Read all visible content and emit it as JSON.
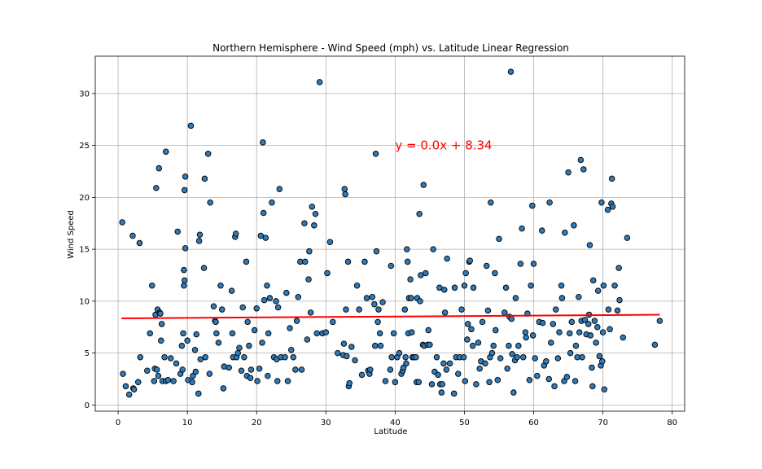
{
  "colors": {
    "marker_fill": "#2f7ab8",
    "marker_edge": "#000000",
    "regression": "#ff0000",
    "annotation": "#ff0000",
    "grid": "#b0b0b0"
  },
  "chart_data": {
    "type": "scatter",
    "title": "Northern Hemisphere - Wind Speed (mph) vs. Latitude Linear Regression",
    "xlabel": "Latitude",
    "ylabel": "Wind Speed",
    "xlim": [
      -3.3,
      81.8
    ],
    "ylim": [
      -0.6,
      33.6
    ],
    "xticks": [
      0,
      10,
      20,
      30,
      40,
      50,
      60,
      70,
      80
    ],
    "yticks": [
      0,
      5,
      10,
      15,
      20,
      25,
      30
    ],
    "grid": true,
    "annotation": {
      "text": "y = 0.0x + 8.34",
      "x": 40.0,
      "y": 25.0
    },
    "regression": {
      "slope": 0.0045,
      "intercept": 8.34,
      "x_start": 0.5,
      "x_end": 78.2
    },
    "points": [
      [
        0.6,
        17.6
      ],
      [
        0.7,
        3.0
      ],
      [
        1.1,
        1.8
      ],
      [
        1.6,
        1.0
      ],
      [
        2.1,
        16.3
      ],
      [
        2.2,
        1.6
      ],
      [
        2.3,
        1.5
      ],
      [
        2.9,
        2.2
      ],
      [
        3.1,
        15.6
      ],
      [
        3.2,
        4.6
      ],
      [
        4.2,
        3.3
      ],
      [
        4.6,
        6.9
      ],
      [
        4.9,
        11.5
      ],
      [
        5.2,
        2.3
      ],
      [
        5.3,
        3.5
      ],
      [
        5.4,
        8.7
      ],
      [
        5.5,
        20.9
      ],
      [
        5.6,
        3.4
      ],
      [
        5.7,
        9.2
      ],
      [
        5.8,
        2.8
      ],
      [
        5.9,
        22.8
      ],
      [
        6.0,
        8.9
      ],
      [
        6.1,
        8.8
      ],
      [
        6.2,
        6.2
      ],
      [
        6.3,
        7.8
      ],
      [
        6.4,
        2.3
      ],
      [
        6.7,
        4.6
      ],
      [
        6.9,
        24.4
      ],
      [
        6.9,
        2.3
      ],
      [
        7.2,
        2.4
      ],
      [
        7.6,
        4.5
      ],
      [
        8.0,
        2.3
      ],
      [
        8.4,
        4.0
      ],
      [
        8.6,
        16.7
      ],
      [
        9.0,
        3.0
      ],
      [
        9.2,
        5.7
      ],
      [
        9.3,
        3.4
      ],
      [
        9.4,
        6.9
      ],
      [
        9.5,
        13.0
      ],
      [
        9.5,
        11.5
      ],
      [
        9.6,
        20.7
      ],
      [
        9.6,
        12.0
      ],
      [
        9.7,
        22.0
      ],
      [
        9.7,
        15.1
      ],
      [
        10.0,
        6.2
      ],
      [
        10.1,
        2.4
      ],
      [
        10.5,
        26.9
      ],
      [
        10.7,
        2.2
      ],
      [
        10.8,
        2.8
      ],
      [
        11.1,
        5.3
      ],
      [
        11.2,
        3.2
      ],
      [
        11.3,
        6.8
      ],
      [
        11.6,
        1.1
      ],
      [
        11.7,
        15.8
      ],
      [
        11.8,
        16.4
      ],
      [
        11.9,
        4.4
      ],
      [
        12.4,
        13.2
      ],
      [
        12.5,
        21.8
      ],
      [
        12.6,
        4.6
      ],
      [
        13.0,
        24.2
      ],
      [
        13.2,
        3.0
      ],
      [
        13.3,
        19.5
      ],
      [
        13.8,
        9.5
      ],
      [
        14.0,
        8.1
      ],
      [
        14.1,
        8.0
      ],
      [
        14.2,
        6.9
      ],
      [
        14.5,
        6.0
      ],
      [
        14.8,
        11.5
      ],
      [
        15.0,
        9.2
      ],
      [
        15.2,
        1.6
      ],
      [
        15.3,
        3.7
      ],
      [
        16.0,
        3.6
      ],
      [
        16.4,
        11.0
      ],
      [
        16.5,
        6.9
      ],
      [
        16.6,
        4.6
      ],
      [
        16.9,
        16.2
      ],
      [
        17.0,
        16.5
      ],
      [
        17.1,
        4.6
      ],
      [
        17.3,
        5.0
      ],
      [
        17.5,
        5.5
      ],
      [
        17.8,
        3.3
      ],
      [
        18.0,
        9.4
      ],
      [
        18.2,
        4.6
      ],
      [
        18.5,
        13.8
      ],
      [
        18.6,
        2.8
      ],
      [
        18.7,
        8.0
      ],
      [
        18.9,
        5.7
      ],
      [
        19.1,
        2.6
      ],
      [
        19.2,
        3.4
      ],
      [
        19.7,
        7.2
      ],
      [
        20.0,
        9.3
      ],
      [
        20.1,
        2.3
      ],
      [
        20.4,
        3.5
      ],
      [
        20.6,
        16.3
      ],
      [
        20.8,
        6.0
      ],
      [
        20.9,
        25.3
      ],
      [
        21.0,
        18.5
      ],
      [
        21.1,
        10.1
      ],
      [
        21.3,
        16.1
      ],
      [
        21.5,
        11.5
      ],
      [
        21.6,
        2.8
      ],
      [
        21.7,
        6.9
      ],
      [
        21.9,
        10.3
      ],
      [
        22.2,
        19.5
      ],
      [
        22.5,
        4.6
      ],
      [
        22.8,
        10.0
      ],
      [
        22.9,
        4.4
      ],
      [
        23.0,
        2.3
      ],
      [
        23.1,
        9.4
      ],
      [
        23.3,
        20.8
      ],
      [
        23.5,
        4.6
      ],
      [
        24.1,
        4.6
      ],
      [
        24.3,
        10.8
      ],
      [
        24.5,
        2.3
      ],
      [
        24.8,
        7.4
      ],
      [
        25.0,
        5.3
      ],
      [
        25.3,
        4.6
      ],
      [
        25.6,
        3.4
      ],
      [
        25.8,
        8.1
      ],
      [
        26.0,
        10.4
      ],
      [
        26.3,
        13.8
      ],
      [
        26.5,
        3.4
      ],
      [
        26.9,
        17.5
      ],
      [
        27.0,
        13.8
      ],
      [
        27.3,
        6.3
      ],
      [
        27.5,
        12.1
      ],
      [
        27.6,
        14.8
      ],
      [
        27.8,
        8.9
      ],
      [
        28.0,
        19.1
      ],
      [
        28.3,
        17.3
      ],
      [
        28.5,
        18.4
      ],
      [
        28.7,
        6.9
      ],
      [
        29.1,
        31.1
      ],
      [
        29.5,
        6.9
      ],
      [
        30.0,
        7.0
      ],
      [
        30.2,
        12.7
      ],
      [
        30.6,
        15.7
      ],
      [
        31.0,
        8.0
      ],
      [
        31.7,
        5.0
      ],
      [
        32.5,
        4.8
      ],
      [
        32.6,
        5.9
      ],
      [
        32.7,
        20.8
      ],
      [
        32.8,
        20.3
      ],
      [
        32.9,
        9.2
      ],
      [
        33.0,
        4.7
      ],
      [
        33.2,
        13.8
      ],
      [
        33.3,
        1.8
      ],
      [
        33.4,
        2.1
      ],
      [
        33.7,
        5.6
      ],
      [
        34.2,
        4.3
      ],
      [
        34.5,
        11.5
      ],
      [
        34.8,
        9.2
      ],
      [
        35.2,
        2.9
      ],
      [
        35.6,
        13.8
      ],
      [
        35.9,
        10.3
      ],
      [
        36.1,
        3.3
      ],
      [
        36.3,
        3.0
      ],
      [
        36.4,
        3.4
      ],
      [
        36.7,
        10.4
      ],
      [
        37.0,
        9.7
      ],
      [
        37.1,
        5.7
      ],
      [
        37.2,
        24.2
      ],
      [
        37.3,
        14.8
      ],
      [
        37.5,
        8.0
      ],
      [
        37.6,
        9.2
      ],
      [
        37.8,
        6.9
      ],
      [
        37.9,
        5.7
      ],
      [
        38.2,
        9.9
      ],
      [
        38.6,
        2.3
      ],
      [
        39.3,
        3.4
      ],
      [
        39.4,
        13.4
      ],
      [
        39.5,
        4.6
      ],
      [
        39.8,
        6.9
      ],
      [
        40.0,
        2.2
      ],
      [
        40.3,
        4.6
      ],
      [
        40.6,
        5.0
      ],
      [
        40.9,
        3.0
      ],
      [
        41.1,
        3.3
      ],
      [
        41.2,
        3.6
      ],
      [
        41.4,
        9.2
      ],
      [
        41.5,
        4.6
      ],
      [
        41.6,
        4.0
      ],
      [
        41.7,
        15.0
      ],
      [
        41.8,
        13.8
      ],
      [
        41.9,
        6.9
      ],
      [
        42.0,
        10.3
      ],
      [
        42.2,
        12.1
      ],
      [
        42.3,
        10.3
      ],
      [
        42.4,
        7.0
      ],
      [
        42.5,
        4.6
      ],
      [
        42.7,
        4.6
      ],
      [
        43.0,
        4.6
      ],
      [
        43.1,
        2.2
      ],
      [
        43.2,
        10.3
      ],
      [
        43.4,
        2.2
      ],
      [
        43.5,
        18.4
      ],
      [
        43.6,
        10.0
      ],
      [
        43.7,
        12.5
      ],
      [
        44.0,
        5.8
      ],
      [
        44.1,
        21.2
      ],
      [
        44.2,
        5.7
      ],
      [
        44.4,
        12.7
      ],
      [
        44.7,
        5.8
      ],
      [
        44.8,
        7.2
      ],
      [
        45.0,
        5.8
      ],
      [
        45.3,
        2.0
      ],
      [
        45.5,
        15.0
      ],
      [
        45.7,
        3.2
      ],
      [
        46.0,
        4.6
      ],
      [
        46.2,
        2.9
      ],
      [
        46.4,
        11.3
      ],
      [
        46.5,
        2.0
      ],
      [
        46.7,
        1.2
      ],
      [
        46.8,
        2.0
      ],
      [
        47.0,
        4.0
      ],
      [
        47.1,
        11.1
      ],
      [
        47.2,
        8.9
      ],
      [
        47.4,
        3.4
      ],
      [
        47.5,
        14.1
      ],
      [
        47.9,
        4.0
      ],
      [
        48.5,
        1.1
      ],
      [
        48.6,
        11.3
      ],
      [
        48.8,
        4.6
      ],
      [
        49.1,
        3.0
      ],
      [
        49.3,
        4.6
      ],
      [
        49.6,
        9.2
      ],
      [
        49.9,
        4.6
      ],
      [
        50.0,
        11.5
      ],
      [
        50.1,
        2.3
      ],
      [
        50.2,
        12.7
      ],
      [
        50.4,
        6.3
      ],
      [
        50.5,
        7.8
      ],
      [
        50.7,
        13.8
      ],
      [
        50.8,
        13.9
      ],
      [
        51.0,
        7.3
      ],
      [
        51.2,
        5.7
      ],
      [
        51.3,
        11.3
      ],
      [
        51.7,
        2.0
      ],
      [
        52.0,
        6.0
      ],
      [
        52.2,
        3.5
      ],
      [
        52.4,
        4.2
      ],
      [
        52.6,
        8.0
      ],
      [
        53.0,
        4.0
      ],
      [
        53.2,
        13.4
      ],
      [
        53.4,
        9.1
      ],
      [
        53.6,
        2.2
      ],
      [
        53.7,
        4.6
      ],
      [
        53.8,
        19.5
      ],
      [
        54.0,
        5.0
      ],
      [
        54.2,
        5.7
      ],
      [
        54.4,
        12.7
      ],
      [
        54.5,
        7.2
      ],
      [
        54.8,
        2.4
      ],
      [
        55.0,
        16.0
      ],
      [
        55.2,
        4.5
      ],
      [
        55.8,
        8.9
      ],
      [
        56.0,
        11.3
      ],
      [
        56.2,
        3.5
      ],
      [
        56.4,
        5.7
      ],
      [
        56.5,
        8.5
      ],
      [
        56.7,
        32.1
      ],
      [
        56.8,
        8.3
      ],
      [
        56.9,
        4.9
      ],
      [
        57.1,
        1.2
      ],
      [
        57.3,
        4.3
      ],
      [
        57.4,
        10.3
      ],
      [
        57.6,
        4.6
      ],
      [
        57.8,
        5.7
      ],
      [
        58.1,
        13.6
      ],
      [
        58.3,
        17.0
      ],
      [
        58.5,
        4.6
      ],
      [
        58.8,
        7.0
      ],
      [
        58.9,
        6.5
      ],
      [
        59.1,
        8.8
      ],
      [
        59.4,
        2.4
      ],
      [
        59.6,
        11.5
      ],
      [
        59.8,
        19.2
      ],
      [
        59.9,
        6.7
      ],
      [
        60.0,
        13.6
      ],
      [
        60.2,
        4.5
      ],
      [
        60.5,
        2.8
      ],
      [
        60.8,
        8.0
      ],
      [
        61.2,
        16.8
      ],
      [
        61.3,
        7.9
      ],
      [
        61.5,
        3.8
      ],
      [
        61.8,
        4.2
      ],
      [
        62.2,
        2.5
      ],
      [
        62.3,
        19.5
      ],
      [
        62.5,
        6.0
      ],
      [
        62.8,
        7.8
      ],
      [
        63.0,
        1.8
      ],
      [
        63.2,
        9.2
      ],
      [
        63.5,
        4.5
      ],
      [
        63.7,
        7.0
      ],
      [
        64.0,
        11.5
      ],
      [
        64.1,
        10.3
      ],
      [
        64.4,
        2.3
      ],
      [
        64.5,
        16.6
      ],
      [
        64.8,
        2.7
      ],
      [
        65.0,
        22.4
      ],
      [
        65.2,
        6.9
      ],
      [
        65.3,
        5.0
      ],
      [
        65.5,
        8.0
      ],
      [
        65.8,
        17.3
      ],
      [
        66.0,
        2.3
      ],
      [
        66.1,
        5.7
      ],
      [
        66.3,
        4.6
      ],
      [
        66.5,
        10.4
      ],
      [
        66.6,
        7.0
      ],
      [
        66.8,
        23.6
      ],
      [
        66.9,
        8.1
      ],
      [
        67.0,
        4.6
      ],
      [
        67.2,
        22.7
      ],
      [
        67.4,
        8.2
      ],
      [
        67.6,
        6.8
      ],
      [
        67.9,
        7.8
      ],
      [
        68.0,
        8.7
      ],
      [
        68.1,
        15.4
      ],
      [
        68.2,
        6.7
      ],
      [
        68.4,
        3.6
      ],
      [
        68.5,
        1.8
      ],
      [
        68.6,
        12.0
      ],
      [
        68.8,
        8.1
      ],
      [
        69.0,
        6.0
      ],
      [
        69.2,
        7.5
      ],
      [
        69.3,
        11.0
      ],
      [
        69.5,
        4.7
      ],
      [
        69.7,
        3.8
      ],
      [
        69.8,
        19.5
      ],
      [
        69.9,
        4.2
      ],
      [
        70.0,
        7.0
      ],
      [
        70.1,
        11.5
      ],
      [
        70.2,
        1.5
      ],
      [
        70.7,
        18.8
      ],
      [
        70.8,
        9.2
      ],
      [
        71.0,
        7.3
      ],
      [
        71.2,
        19.4
      ],
      [
        71.3,
        21.8
      ],
      [
        71.4,
        19.1
      ],
      [
        71.7,
        11.5
      ],
      [
        72.1,
        9.1
      ],
      [
        72.3,
        13.2
      ],
      [
        72.4,
        10.1
      ],
      [
        72.9,
        6.5
      ],
      [
        73.5,
        16.1
      ],
      [
        77.5,
        5.8
      ],
      [
        78.2,
        8.1
      ]
    ]
  }
}
